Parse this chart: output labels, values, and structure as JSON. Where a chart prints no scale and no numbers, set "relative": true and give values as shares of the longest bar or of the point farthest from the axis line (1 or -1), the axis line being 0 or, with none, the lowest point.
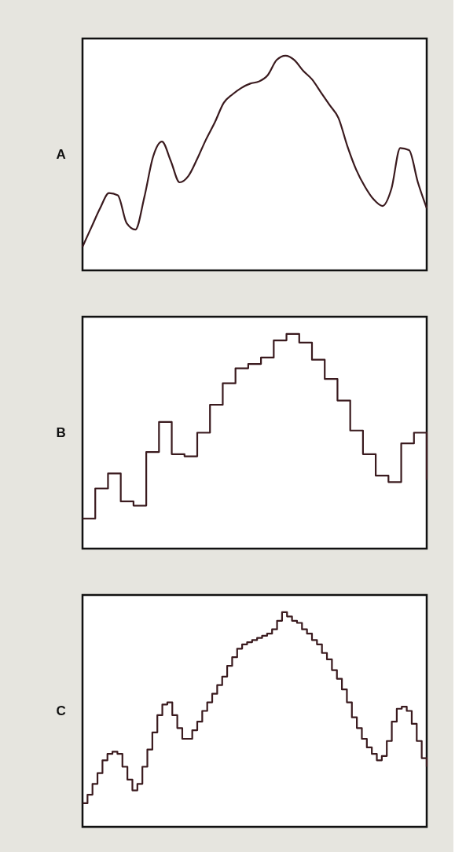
{
  "chart_data": [
    {
      "type": "line",
      "title": "A",
      "relative": true,
      "tick_labels": false,
      "color": "#3a1a1e",
      "categories": [
        null,
        null,
        null,
        null,
        null,
        null,
        null,
        null,
        null,
        null,
        null,
        null,
        null,
        null,
        null,
        null,
        null,
        null,
        null,
        null,
        null,
        null,
        null,
        null,
        null,
        null,
        null,
        null,
        null,
        null,
        null,
        null,
        null,
        null,
        null,
        null,
        null,
        null,
        null,
        null
      ],
      "values": [
        0.11,
        0.2,
        0.29,
        0.36,
        0.35,
        0.22,
        0.19,
        0.34,
        0.53,
        0.6,
        0.51,
        0.41,
        0.44,
        0.52,
        0.61,
        0.69,
        0.78,
        0.82,
        0.85,
        0.87,
        0.88,
        0.91,
        0.98,
        1.0,
        0.98,
        0.93,
        0.89,
        0.83,
        0.77,
        0.71,
        0.58,
        0.47,
        0.39,
        0.33,
        0.3,
        0.38,
        0.57,
        0.56,
        0.41,
        0.29
      ]
    },
    {
      "type": "step",
      "title": "B",
      "relative": true,
      "tick_labels": false,
      "color": "#3a1a1e",
      "categories": [
        null,
        null,
        null,
        null,
        null,
        null,
        null,
        null,
        null,
        null,
        null,
        null,
        null,
        null,
        null,
        null,
        null,
        null,
        null,
        null,
        null,
        null,
        null,
        null,
        null,
        null,
        null,
        null
      ],
      "values": [
        0.14,
        0.28,
        0.35,
        0.22,
        0.2,
        0.45,
        0.59,
        0.44,
        0.43,
        0.54,
        0.67,
        0.77,
        0.84,
        0.86,
        0.89,
        0.97,
        1.0,
        0.96,
        0.88,
        0.79,
        0.69,
        0.55,
        0.44,
        0.34,
        0.31,
        0.49,
        0.54,
        0.32
      ]
    },
    {
      "type": "step",
      "title": "C",
      "relative": true,
      "tick_labels": false,
      "color": "#3a1a1e",
      "categories": [
        null,
        null,
        null,
        null,
        null,
        null,
        null,
        null,
        null,
        null,
        null,
        null,
        null,
        null,
        null,
        null,
        null,
        null,
        null,
        null,
        null,
        null,
        null,
        null,
        null,
        null,
        null,
        null,
        null,
        null,
        null,
        null,
        null,
        null,
        null,
        null,
        null,
        null,
        null,
        null,
        null,
        null,
        null,
        null,
        null,
        null,
        null,
        null,
        null,
        null,
        null,
        null,
        null,
        null,
        null,
        null,
        null,
        null,
        null,
        null,
        null,
        null,
        null,
        null,
        null,
        null,
        null,
        null,
        null,
        null
      ],
      "values": [
        0.11,
        0.15,
        0.2,
        0.25,
        0.31,
        0.34,
        0.35,
        0.34,
        0.28,
        0.22,
        0.17,
        0.2,
        0.28,
        0.36,
        0.44,
        0.52,
        0.57,
        0.58,
        0.52,
        0.46,
        0.41,
        0.41,
        0.45,
        0.49,
        0.54,
        0.58,
        0.62,
        0.66,
        0.7,
        0.75,
        0.79,
        0.83,
        0.85,
        0.86,
        0.87,
        0.88,
        0.89,
        0.9,
        0.92,
        0.96,
        1.0,
        0.98,
        0.96,
        0.95,
        0.92,
        0.9,
        0.87,
        0.85,
        0.81,
        0.78,
        0.73,
        0.69,
        0.64,
        0.58,
        0.51,
        0.46,
        0.41,
        0.37,
        0.34,
        0.31,
        0.33,
        0.4,
        0.49,
        0.55,
        0.56,
        0.54,
        0.48,
        0.4,
        0.32,
        0.28
      ]
    }
  ]
}
